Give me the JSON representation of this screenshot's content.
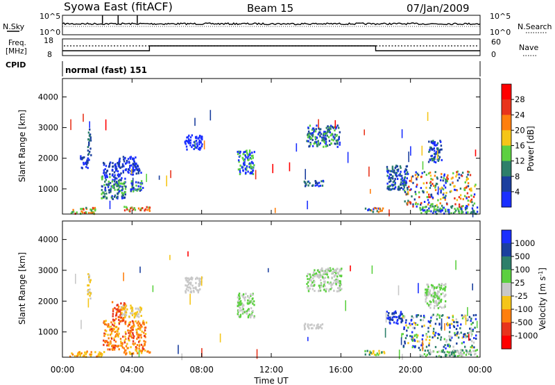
{
  "header": {
    "station": "Syowa East (fitACF)",
    "beam": "Beam 15",
    "date": "07/Jan/2009"
  },
  "noise_panel": {
    "left_label": "N.Sky",
    "right_label": "N.Search",
    "left_ticks": [
      "10^5",
      "10^0"
    ],
    "right_ticks": [
      "10^5",
      "10^0"
    ],
    "spike_hours": [
      2.3,
      3.2,
      4.3
    ]
  },
  "freq_panel": {
    "left_label_1": "Freq.",
    "left_label_2": "[MHz]",
    "right_label": "Nave",
    "left_ticks": [
      "18",
      "8"
    ],
    "right_ticks": [
      "60",
      "0"
    ],
    "freq_steps": [
      {
        "from_hour": 0,
        "to_hour": 5.0,
        "level": "low"
      },
      {
        "from_hour": 5.0,
        "to_hour": 18.0,
        "level": "high"
      },
      {
        "from_hour": 18.0,
        "to_hour": 24,
        "level": "low"
      }
    ]
  },
  "cpid_panel": {
    "label": "CPID",
    "program": "normal (fast) 151"
  },
  "chart_data": [
    {
      "type": "heatmap",
      "name": "power",
      "xlabel": "",
      "ylabel": "Slant Range [km]",
      "x_range_hours": [
        0,
        24
      ],
      "ylim": [
        180,
        4600
      ],
      "yticks": [
        "1000",
        "2000",
        "3000",
        "4000"
      ],
      "colorbar_label": "Power [dB]",
      "colorbar_ticks": [
        "4",
        "8",
        "12",
        "16",
        "20",
        "24",
        "28"
      ],
      "colors": [
        "#1a2fff",
        "#1b3f9e",
        "#2d7f6a",
        "#5cd040",
        "#f5c518",
        "#ff7f0e",
        "#e8341c",
        "#ff0000"
      ],
      "regions": [
        {
          "hours": [
            0.4,
            1.9
          ],
          "km": [
            220,
            420
          ],
          "levels": [
            5,
            6,
            3,
            2
          ]
        },
        {
          "hours": [
            1.0,
            1.5
          ],
          "km": [
            1700,
            2100
          ],
          "levels": [
            0,
            1
          ]
        },
        {
          "hours": [
            1.4,
            1.6
          ],
          "km": [
            2100,
            3000
          ],
          "levels": [
            1,
            2
          ]
        },
        {
          "hours": [
            2.2,
            3.6
          ],
          "km": [
            700,
            1450
          ],
          "levels": [
            1,
            2,
            3,
            0
          ]
        },
        {
          "hours": [
            2.3,
            3.3
          ],
          "km": [
            1450,
            1900
          ],
          "levels": [
            0,
            1
          ]
        },
        {
          "hours": [
            3.3,
            4.5
          ],
          "km": [
            1500,
            1800
          ],
          "levels": [
            0,
            1
          ]
        },
        {
          "hours": [
            3.2,
            4.2
          ],
          "km": [
            1800,
            2100
          ],
          "levels": [
            0,
            1
          ]
        },
        {
          "hours": [
            3.5,
            5.0
          ],
          "km": [
            300,
            450
          ],
          "levels": [
            6,
            5,
            3
          ]
        },
        {
          "hours": [
            3.8,
            4.6
          ],
          "km": [
            950,
            1300
          ],
          "levels": [
            0,
            1,
            3
          ]
        },
        {
          "hours": [
            7.0,
            8.0
          ],
          "km": [
            2300,
            2800
          ],
          "levels": [
            0
          ]
        },
        {
          "hours": [
            10.0,
            11.0
          ],
          "km": [
            1500,
            2300
          ],
          "levels": [
            0,
            3
          ]
        },
        {
          "hours": [
            13.8,
            15.0
          ],
          "km": [
            1120,
            1300
          ],
          "levels": [
            0,
            1,
            2
          ]
        },
        {
          "hours": [
            14.0,
            15.9
          ],
          "km": [
            2400,
            3100
          ],
          "levels": [
            0,
            1,
            2,
            3
          ]
        },
        {
          "hours": [
            17.3,
            18.5
          ],
          "km": [
            280,
            420
          ],
          "levels": [
            0,
            2,
            5
          ]
        },
        {
          "hours": [
            18.6,
            19.8
          ],
          "km": [
            1000,
            1800
          ],
          "levels": [
            0,
            1,
            2
          ]
        },
        {
          "hours": [
            19.5,
            23.7
          ],
          "km": [
            450,
            1600
          ],
          "levels": [
            0,
            1,
            2,
            3,
            4,
            5,
            6
          ]
        },
        {
          "hours": [
            21.0,
            21.8
          ],
          "km": [
            1900,
            2600
          ],
          "levels": [
            0,
            1,
            2
          ]
        },
        {
          "hours": [
            20.5,
            23.8
          ],
          "km": [
            220,
            450
          ],
          "levels": [
            0,
            3,
            2
          ]
        }
      ]
    },
    {
      "type": "heatmap",
      "name": "velocity",
      "xlabel": "Time UT",
      "ylabel": "Slant Range [km]",
      "x_range_hours": [
        0,
        24
      ],
      "ylim": [
        180,
        4600
      ],
      "yticks": [
        "1000",
        "2000",
        "3000",
        "4000"
      ],
      "xticks": [
        "00:00",
        "04:00",
        "08:00",
        "12:00",
        "16:00",
        "20:00",
        "00:00"
      ],
      "colorbar_label": "Velocity [m s^-1]",
      "colorbar_ticks": [
        "1000",
        "500",
        "100",
        "25",
        "-25",
        "-100",
        "-500",
        "-1000"
      ],
      "colors": [
        "#1a2fff",
        "#1b3f9e",
        "#2d7f6a",
        "#5cd040",
        "#c8c8c8",
        "#f5c518",
        "#ff7f0e",
        "#e8341c",
        "#ff0000"
      ],
      "regions": [
        {
          "hours": [
            0.4,
            2.4
          ],
          "km": [
            220,
            400
          ],
          "levels": [
            5,
            6,
            5
          ]
        },
        {
          "hours": [
            1.4,
            1.6
          ],
          "km": [
            2100,
            3000
          ],
          "levels": [
            4,
            5
          ]
        },
        {
          "hours": [
            2.3,
            4.8
          ],
          "km": [
            450,
            1400
          ],
          "levels": [
            6,
            6,
            7,
            5
          ]
        },
        {
          "hours": [
            2.8,
            3.6
          ],
          "km": [
            1400,
            2000
          ],
          "levels": [
            6,
            7
          ]
        },
        {
          "hours": [
            3.3,
            4.5
          ],
          "km": [
            1500,
            1900
          ],
          "levels": [
            4,
            5
          ]
        },
        {
          "hours": [
            3.5,
            5.0
          ],
          "km": [
            300,
            450
          ],
          "levels": [
            5,
            6
          ]
        },
        {
          "hours": [
            7.0,
            8.0
          ],
          "km": [
            2300,
            2800
          ],
          "levels": [
            4
          ]
        },
        {
          "hours": [
            10.0,
            11.0
          ],
          "km": [
            1500,
            2300
          ],
          "levels": [
            4,
            3
          ]
        },
        {
          "hours": [
            13.8,
            15.0
          ],
          "km": [
            1120,
            1300
          ],
          "levels": [
            4
          ]
        },
        {
          "hours": [
            14.0,
            16.0
          ],
          "km": [
            2350,
            3100
          ],
          "levels": [
            4,
            4,
            3
          ]
        },
        {
          "hours": [
            17.3,
            18.5
          ],
          "km": [
            280,
            420
          ],
          "levels": [
            5,
            3,
            2
          ]
        },
        {
          "hours": [
            18.6,
            19.5
          ],
          "km": [
            1300,
            1700
          ],
          "levels": [
            0,
            1
          ]
        },
        {
          "hours": [
            19.5,
            23.8
          ],
          "km": [
            500,
            1600
          ],
          "levels": [
            0,
            1,
            2,
            4,
            3,
            5
          ]
        },
        {
          "hours": [
            20.8,
            22.0
          ],
          "km": [
            1800,
            2600
          ],
          "levels": [
            4,
            3
          ]
        },
        {
          "hours": [
            20.5,
            23.8
          ],
          "km": [
            220,
            450
          ],
          "levels": [
            3,
            4,
            2
          ]
        }
      ]
    }
  ]
}
